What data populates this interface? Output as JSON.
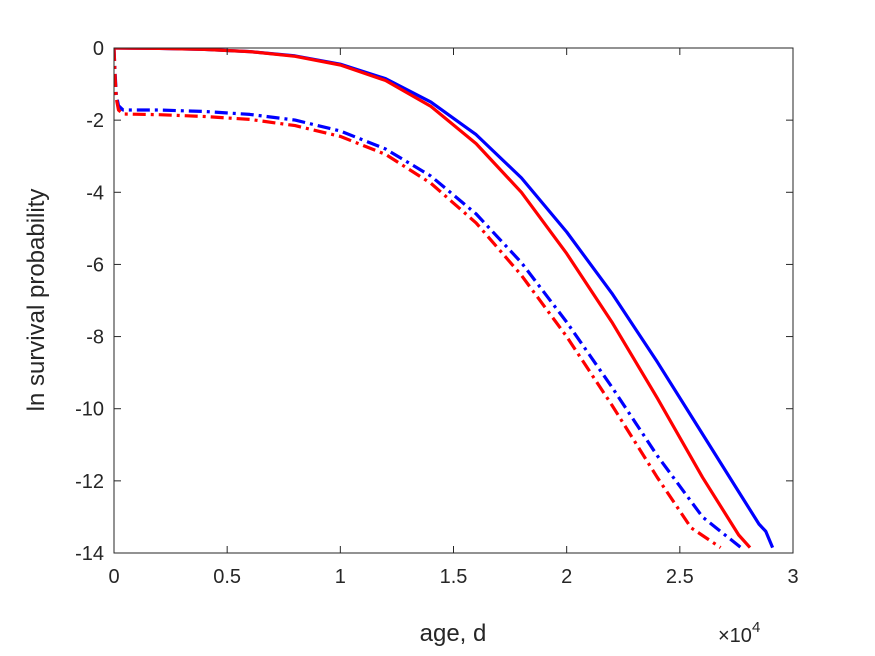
{
  "chart_data": {
    "type": "line",
    "title": "",
    "xlabel": "age, d",
    "ylabel": "ln survival probability",
    "x_exponent_label": "×10",
    "x_exponent_power": "4",
    "xlim": [
      0,
      30000
    ],
    "ylim": [
      -14,
      0
    ],
    "x_ticks": [
      0,
      5000,
      10000,
      15000,
      20000,
      25000,
      30000
    ],
    "x_tick_labels": [
      "0",
      "0.5",
      "1",
      "1.5",
      "2",
      "2.5",
      "3"
    ],
    "y_ticks": [
      0,
      -2,
      -4,
      -6,
      -8,
      -10,
      -12,
      -14
    ],
    "y_tick_labels": [
      "0",
      "-2",
      "-4",
      "-6",
      "-8",
      "-10",
      "-12",
      "-14"
    ],
    "grid": false,
    "series": [
      {
        "color": "#0000ff",
        "style": "solid",
        "points": [
          [
            0,
            0
          ],
          [
            2000,
            -0.01
          ],
          [
            4000,
            -0.04
          ],
          [
            6000,
            -0.1
          ],
          [
            8000,
            -0.22
          ],
          [
            10000,
            -0.45
          ],
          [
            12000,
            -0.85
          ],
          [
            14000,
            -1.5
          ],
          [
            16000,
            -2.4
          ],
          [
            18000,
            -3.6
          ],
          [
            20000,
            -5.1
          ],
          [
            22000,
            -6.8
          ],
          [
            24000,
            -8.7
          ],
          [
            26000,
            -10.7
          ],
          [
            27500,
            -12.2
          ],
          [
            28500,
            -13.2
          ],
          [
            28800,
            -13.4
          ],
          [
            29100,
            -13.85
          ]
        ]
      },
      {
        "color": "#ff0000",
        "style": "solid",
        "points": [
          [
            0,
            0
          ],
          [
            2000,
            -0.01
          ],
          [
            4000,
            -0.04
          ],
          [
            6000,
            -0.1
          ],
          [
            8000,
            -0.23
          ],
          [
            10000,
            -0.47
          ],
          [
            12000,
            -0.9
          ],
          [
            14000,
            -1.62
          ],
          [
            16000,
            -2.65
          ],
          [
            18000,
            -4.0
          ],
          [
            20000,
            -5.7
          ],
          [
            22000,
            -7.6
          ],
          [
            24000,
            -9.7
          ],
          [
            26000,
            -11.9
          ],
          [
            27600,
            -13.5
          ],
          [
            28100,
            -13.85
          ]
        ]
      },
      {
        "color": "#0000ff",
        "style": "dashdot",
        "points": [
          [
            0,
            0
          ],
          [
            50,
            -0.7
          ],
          [
            100,
            -1.3
          ],
          [
            200,
            -1.6
          ],
          [
            400,
            -1.72
          ],
          [
            2000,
            -1.72
          ],
          [
            4000,
            -1.76
          ],
          [
            6000,
            -1.84
          ],
          [
            8000,
            -2.0
          ],
          [
            10000,
            -2.3
          ],
          [
            12000,
            -2.8
          ],
          [
            14000,
            -3.55
          ],
          [
            16000,
            -4.6
          ],
          [
            18000,
            -5.95
          ],
          [
            20000,
            -7.6
          ],
          [
            22000,
            -9.4
          ],
          [
            24000,
            -11.3
          ],
          [
            26000,
            -13.0
          ],
          [
            27700,
            -13.85
          ]
        ]
      },
      {
        "color": "#ff0000",
        "style": "dashdot",
        "points": [
          [
            0,
            0
          ],
          [
            50,
            -0.8
          ],
          [
            100,
            -1.4
          ],
          [
            200,
            -1.72
          ],
          [
            400,
            -1.83
          ],
          [
            2000,
            -1.85
          ],
          [
            4000,
            -1.9
          ],
          [
            6000,
            -1.98
          ],
          [
            8000,
            -2.15
          ],
          [
            10000,
            -2.45
          ],
          [
            12000,
            -2.95
          ],
          [
            14000,
            -3.75
          ],
          [
            16000,
            -4.85
          ],
          [
            18000,
            -6.3
          ],
          [
            20000,
            -8.0
          ],
          [
            22000,
            -9.9
          ],
          [
            24000,
            -11.9
          ],
          [
            25500,
            -13.3
          ],
          [
            26800,
            -13.85
          ]
        ]
      }
    ]
  }
}
